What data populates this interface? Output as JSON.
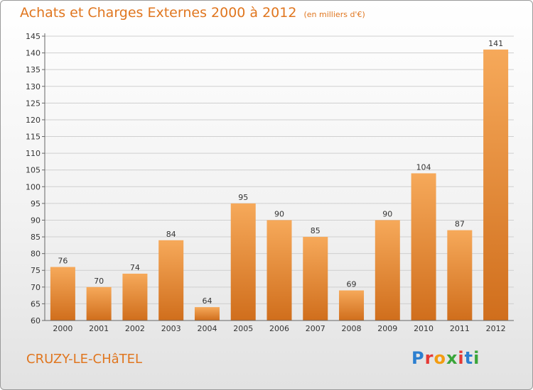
{
  "header": {
    "title": "Achats et Charges Externes 2000 à 2012",
    "unit": "(en milliers d'€)"
  },
  "footer": {
    "city": "CRUZY-LE-CHâTEL",
    "brand": "Proxiti"
  },
  "colors": {
    "accent": "#e0761f",
    "bar_light": "#f6a95a",
    "bar_dark": "#d06e1c",
    "grid": "#cfcfcf"
  },
  "chart_data": {
    "type": "bar",
    "title": "Achats et Charges Externes 2000 à 2012",
    "subtitle": "(en milliers d'€)",
    "categories": [
      "2000",
      "2001",
      "2002",
      "2003",
      "2004",
      "2005",
      "2006",
      "2007",
      "2008",
      "2009",
      "2010",
      "2011",
      "2012"
    ],
    "values": [
      76,
      70,
      74,
      84,
      64,
      95,
      90,
      85,
      69,
      90,
      104,
      87,
      141
    ],
    "ylim": [
      60,
      145
    ],
    "yticks": [
      60,
      65,
      70,
      75,
      80,
      85,
      90,
      95,
      100,
      105,
      110,
      115,
      120,
      125,
      130,
      135,
      140,
      145
    ],
    "grid": true,
    "legend": "none",
    "xlabel": "",
    "ylabel": ""
  }
}
